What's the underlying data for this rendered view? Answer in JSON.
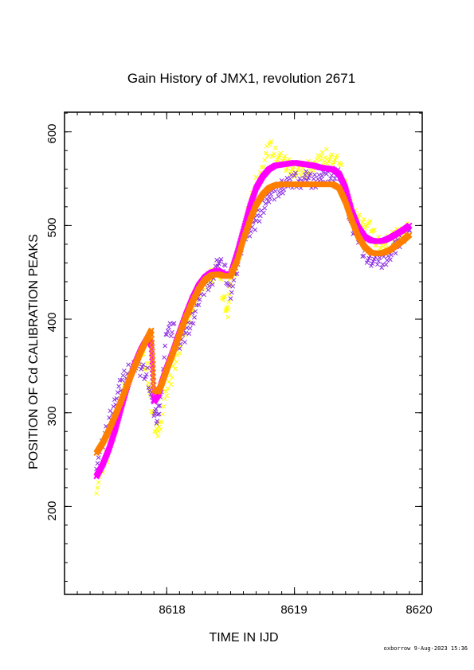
{
  "footer": "oxborrow  9-Aug-2023 15:36",
  "chart_data": {
    "type": "scatter",
    "title": "Gain History of JMX1, revolution 2671",
    "xlabel": "TIME IN IJD",
    "ylabel": "POSITION OF Cd CALIBRATION PEAKS",
    "xlim": [
      8617.2,
      8620.0
    ],
    "ylim": [
      106,
      621
    ],
    "xticks": [
      8618,
      8619,
      8620
    ],
    "yticks": [
      200,
      300,
      400,
      500,
      600
    ],
    "tick_labels_x": [
      "8618",
      "8619",
      "8620"
    ],
    "tick_labels_y": [
      "200",
      "300",
      "400",
      "500",
      "600"
    ],
    "grid": false,
    "colors": {
      "yellow": "#ffff00",
      "purple": "#8a2be2",
      "magenta": "#ff00ff",
      "orange": "#ff7f00"
    },
    "series": [
      {
        "color": "yellow",
        "marker": "x",
        "x": [
          8617.45,
          8617.5,
          8617.55,
          8617.6,
          8617.65,
          8617.7,
          8617.75,
          8617.8,
          8617.85,
          8617.88,
          8617.92,
          8617.95,
          8618.0,
          8618.05,
          8618.1,
          8618.15,
          8618.2,
          8618.25,
          8618.3,
          8618.35,
          8618.4,
          8618.45,
          8618.48,
          8618.5,
          8618.55,
          8618.6,
          8618.65,
          8618.7,
          8618.75,
          8618.8,
          8618.85,
          8618.9,
          8618.95,
          8619.0,
          8619.05,
          8619.1,
          8619.15,
          8619.2,
          8619.25,
          8619.3,
          8619.35,
          8619.4,
          8619.45,
          8619.5,
          8619.55,
          8619.6,
          8619.65,
          8619.7,
          8619.75,
          8619.8,
          8619.85,
          8619.9
        ],
        "y": [
          222,
          238,
          262,
          290,
          318,
          335,
          350,
          360,
          345,
          305,
          280,
          290,
          320,
          345,
          370,
          395,
          415,
          430,
          440,
          445,
          452,
          420,
          410,
          440,
          460,
          495,
          520,
          545,
          560,
          585,
          575,
          570,
          565,
          560,
          555,
          560,
          565,
          570,
          575,
          570,
          565,
          540,
          515,
          505,
          505,
          495,
          480,
          478,
          485,
          490,
          492,
          495
        ]
      },
      {
        "color": "purple",
        "marker": "x",
        "x": [
          8617.45,
          8617.5,
          8617.55,
          8617.6,
          8617.65,
          8617.7,
          8617.75,
          8617.8,
          8617.85,
          8617.9,
          8617.93,
          8617.96,
          8618.0,
          8618.05,
          8618.1,
          8618.15,
          8618.2,
          8618.25,
          8618.3,
          8618.35,
          8618.4,
          8618.45,
          8618.5,
          8618.55,
          8618.6,
          8618.65,
          8618.7,
          8618.75,
          8618.8,
          8618.85,
          8618.9,
          8618.95,
          8619.0,
          8619.05,
          8619.1,
          8619.15,
          8619.2,
          8619.25,
          8619.3,
          8619.35,
          8619.4,
          8619.45,
          8619.5,
          8619.55,
          8619.6,
          8619.65,
          8619.7,
          8619.75,
          8619.8,
          8619.85,
          8619.9
        ],
        "y": [
          248,
          265,
          290,
          315,
          335,
          345,
          350,
          345,
          340,
          300,
          295,
          330,
          385,
          390,
          375,
          385,
          400,
          420,
          435,
          440,
          460,
          455,
          430,
          450,
          490,
          495,
          505,
          520,
          530,
          535,
          540,
          545,
          550,
          548,
          550,
          545,
          552,
          555,
          555,
          555,
          530,
          500,
          485,
          470,
          465,
          460,
          462,
          470,
          480,
          490,
          495
        ]
      },
      {
        "color": "magenta",
        "marker": "x",
        "x": [
          8617.45,
          8617.5,
          8617.55,
          8617.6,
          8617.65,
          8617.7,
          8617.75,
          8617.8,
          8617.85,
          8617.88,
          8617.9,
          8617.93,
          8617.96,
          8618.0,
          8618.05,
          8618.1,
          8618.15,
          8618.2,
          8618.25,
          8618.3,
          8618.35,
          8618.4,
          8618.45,
          8618.5,
          8618.55,
          8618.6,
          8618.65,
          8618.7,
          8618.75,
          8618.8,
          8618.85,
          8618.9,
          8618.95,
          8619.0,
          8619.05,
          8619.1,
          8619.15,
          8619.2,
          8619.25,
          8619.3,
          8619.35,
          8619.4,
          8619.45,
          8619.5,
          8619.55,
          8619.6,
          8619.65,
          8619.7,
          8619.75,
          8619.8,
          8619.85,
          8619.9
        ],
        "y": [
          232,
          245,
          262,
          283,
          308,
          332,
          352,
          368,
          380,
          372,
          312,
          318,
          332,
          348,
          366,
          386,
          405,
          422,
          436,
          445,
          450,
          452,
          448,
          448,
          470,
          495,
          520,
          540,
          552,
          560,
          564,
          565,
          566,
          567,
          566,
          565,
          564,
          562,
          561,
          560,
          555,
          540,
          515,
          498,
          488,
          484,
          483,
          484,
          487,
          491,
          495,
          500
        ]
      },
      {
        "color": "orange",
        "marker": "x",
        "x": [
          8617.45,
          8617.5,
          8617.55,
          8617.6,
          8617.65,
          8617.7,
          8617.75,
          8617.8,
          8617.85,
          8617.88,
          8617.9,
          8617.93,
          8617.96,
          8618.0,
          8618.05,
          8618.1,
          8618.15,
          8618.2,
          8618.25,
          8618.3,
          8618.35,
          8618.4,
          8618.45,
          8618.5,
          8618.55,
          8618.6,
          8618.65,
          8618.7,
          8618.75,
          8618.8,
          8618.85,
          8618.9,
          8618.95,
          8619.0,
          8619.05,
          8619.1,
          8619.15,
          8619.2,
          8619.25,
          8619.3,
          8619.35,
          8619.4,
          8619.45,
          8619.5,
          8619.55,
          8619.6,
          8619.65,
          8619.7,
          8619.75,
          8619.8,
          8619.85,
          8619.9
        ],
        "y": [
          257,
          268,
          282,
          298,
          315,
          333,
          350,
          366,
          380,
          388,
          325,
          322,
          330,
          346,
          364,
          384,
          402,
          418,
          432,
          442,
          447,
          448,
          446,
          446,
          462,
          485,
          505,
          522,
          533,
          540,
          543,
          544,
          544,
          544,
          544,
          544,
          544,
          544,
          544,
          544,
          540,
          525,
          505,
          488,
          477,
          471,
          470,
          471,
          474,
          479,
          484,
          490
        ]
      }
    ]
  }
}
